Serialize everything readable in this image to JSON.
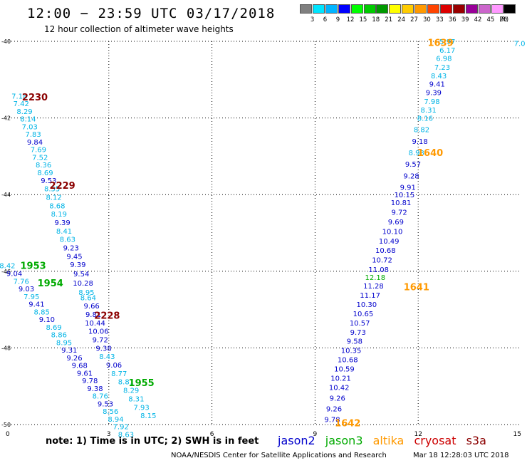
{
  "header": {
    "title": "12:00 − 23:59 UTC 03/17/2018",
    "subtitle": "12 hour collection of altimeter wave heights"
  },
  "colorbar": {
    "labels": [
      "3",
      "6",
      "9",
      "12",
      "15",
      "18",
      "21",
      "24",
      "27",
      "30",
      "33",
      "36",
      "39",
      "42",
      "45",
      "70"
    ],
    "unit": "(ft)",
    "colors": [
      "#808080",
      "#00e5ff",
      "#00b4ff",
      "#0000ff",
      "#00ff00",
      "#00cc00",
      "#009900",
      "#ffff00",
      "#ffcc00",
      "#ff9900",
      "#ff4400",
      "#dd0000",
      "#990000",
      "#990099",
      "#cc66cc",
      "#ff99ff",
      "#000000"
    ]
  },
  "axes": {
    "x_ticks": [
      "0",
      "3",
      "6",
      "9",
      "12",
      "15"
    ],
    "y_ticks": [
      "-40",
      "-42",
      "-44",
      "-46",
      "-48",
      "-50"
    ]
  },
  "satellite_colors": {
    "jason2": "#0000cc",
    "jason3": "#00aa00",
    "altika": "#ff9900",
    "cryosat": "#cc0000",
    "s3a": "#8b0000",
    "light": "#00b4e6"
  },
  "labels": [
    {
      "text": "1639",
      "sat": "altika",
      "lon": 12.65,
      "lat": -40.03
    },
    {
      "text": "1640",
      "sat": "altika",
      "lon": 12.35,
      "lat": -42.9
    },
    {
      "text": "1641",
      "sat": "altika",
      "lon": 11.95,
      "lat": -46.4
    },
    {
      "text": "1642",
      "sat": "altika",
      "lon": 9.95,
      "lat": -49.95
    },
    {
      "text": "2230",
      "sat": "s3a",
      "lon": 0.85,
      "lat": -41.45
    },
    {
      "text": "2229",
      "sat": "s3a",
      "lon": 1.65,
      "lat": -43.75
    },
    {
      "text": "2228",
      "sat": "s3a",
      "lon": 2.95,
      "lat": -47.15
    },
    {
      "text": "1953",
      "sat": "jason3",
      "lon": 0.8,
      "lat": -45.85
    },
    {
      "text": "1954",
      "sat": "jason3",
      "lon": 1.3,
      "lat": -46.3
    },
    {
      "text": "1955",
      "sat": "jason3",
      "lon": 3.95,
      "lat": -48.9
    }
  ],
  "obs": [
    {
      "v": "5.97",
      "lon": 12.85,
      "lat": -40.0,
      "c": "light"
    },
    {
      "v": "6.17",
      "lon": 12.85,
      "lat": -40.22,
      "c": "light"
    },
    {
      "v": "6.98",
      "lon": 12.75,
      "lat": -40.44,
      "c": "light"
    },
    {
      "v": "7.23",
      "lon": 12.7,
      "lat": -40.67,
      "c": "light"
    },
    {
      "v": "8.43",
      "lon": 12.6,
      "lat": -40.89,
      "c": "light"
    },
    {
      "v": "9.41",
      "lon": 12.55,
      "lat": -41.11,
      "c": "jason2"
    },
    {
      "v": "9.39",
      "lon": 12.45,
      "lat": -41.33,
      "c": "jason2"
    },
    {
      "v": "7.98",
      "lon": 12.4,
      "lat": -41.56,
      "c": "light"
    },
    {
      "v": "8.31",
      "lon": 12.3,
      "lat": -41.78,
      "c": "light"
    },
    {
      "v": "8.16",
      "lon": 12.2,
      "lat": -42.0,
      "c": "light"
    },
    {
      "v": "8.82",
      "lon": 12.1,
      "lat": -42.3,
      "c": "light"
    },
    {
      "v": "9.18",
      "lon": 12.05,
      "lat": -42.6,
      "c": "jason2"
    },
    {
      "v": "8.93",
      "lon": 11.95,
      "lat": -42.9,
      "c": "light"
    },
    {
      "v": "9.57",
      "lon": 11.85,
      "lat": -43.2,
      "c": "jason2"
    },
    {
      "v": "9.28",
      "lon": 11.8,
      "lat": -43.5,
      "c": "jason2"
    },
    {
      "v": "9.91",
      "lon": 11.7,
      "lat": -43.8,
      "c": "jason2"
    },
    {
      "v": "10.15",
      "lon": 11.6,
      "lat": -44.0,
      "c": "jason2"
    },
    {
      "v": "10.81",
      "lon": 11.5,
      "lat": -44.2,
      "c": "jason2"
    },
    {
      "v": "9.72",
      "lon": 11.45,
      "lat": -44.45,
      "c": "jason2"
    },
    {
      "v": "9.69",
      "lon": 11.35,
      "lat": -44.7,
      "c": "jason2"
    },
    {
      "v": "10.10",
      "lon": 11.25,
      "lat": -44.95,
      "c": "jason2"
    },
    {
      "v": "10.49",
      "lon": 11.15,
      "lat": -45.2,
      "c": "jason2"
    },
    {
      "v": "10.68",
      "lon": 11.05,
      "lat": -45.45,
      "c": "jason2"
    },
    {
      "v": "10.72",
      "lon": 10.95,
      "lat": -45.7,
      "c": "jason2"
    },
    {
      "v": "11.08",
      "lon": 10.85,
      "lat": -45.95,
      "c": "jason2"
    },
    {
      "v": "12.18",
      "lon": 10.75,
      "lat": -46.15,
      "c": "jason3"
    },
    {
      "v": "11.28",
      "lon": 10.7,
      "lat": -46.38,
      "c": "jason2"
    },
    {
      "v": "11.17",
      "lon": 10.6,
      "lat": -46.62,
      "c": "jason2"
    },
    {
      "v": "10.30",
      "lon": 10.5,
      "lat": -46.86,
      "c": "jason2"
    },
    {
      "v": "10.65",
      "lon": 10.4,
      "lat": -47.1,
      "c": "jason2"
    },
    {
      "v": "10.57",
      "lon": 10.3,
      "lat": -47.34,
      "c": "jason2"
    },
    {
      "v": "9.73",
      "lon": 10.25,
      "lat": -47.58,
      "c": "jason2"
    },
    {
      "v": "9.58",
      "lon": 10.15,
      "lat": -47.82,
      "c": "jason2"
    },
    {
      "v": "10.35",
      "lon": 10.05,
      "lat": -48.06,
      "c": "jason2"
    },
    {
      "v": "10.68",
      "lon": 9.95,
      "lat": -48.3,
      "c": "jason2"
    },
    {
      "v": "10.59",
      "lon": 9.85,
      "lat": -48.54,
      "c": "jason2"
    },
    {
      "v": "10.21",
      "lon": 9.75,
      "lat": -48.78,
      "c": "jason2"
    },
    {
      "v": "10.42",
      "lon": 9.7,
      "lat": -49.02,
      "c": "jason2"
    },
    {
      "v": "9.26",
      "lon": 9.65,
      "lat": -49.3,
      "c": "jason2"
    },
    {
      "v": "9.26",
      "lon": 9.55,
      "lat": -49.58,
      "c": "jason2"
    },
    {
      "v": "9.78",
      "lon": 9.5,
      "lat": -49.86,
      "c": "jason2"
    },
    {
      "v": "7.18",
      "lon": 0.4,
      "lat": -41.42,
      "c": "light"
    },
    {
      "v": "7.42",
      "lon": 0.45,
      "lat": -41.62,
      "c": "light"
    },
    {
      "v": "8.29",
      "lon": 0.55,
      "lat": -41.82,
      "c": "light"
    },
    {
      "v": "8.14",
      "lon": 0.65,
      "lat": -42.02,
      "c": "light"
    },
    {
      "v": "7.03",
      "lon": 0.7,
      "lat": -42.22,
      "c": "light"
    },
    {
      "v": "7.83",
      "lon": 0.8,
      "lat": -42.42,
      "c": "light"
    },
    {
      "v": "9.84",
      "lon": 0.85,
      "lat": -42.62,
      "c": "jason2"
    },
    {
      "v": "7.69",
      "lon": 0.95,
      "lat": -42.82,
      "c": "light"
    },
    {
      "v": "7.52",
      "lon": 1.0,
      "lat": -43.02,
      "c": "light"
    },
    {
      "v": "8.36",
      "lon": 1.1,
      "lat": -43.22,
      "c": "light"
    },
    {
      "v": "8.69",
      "lon": 1.15,
      "lat": -43.42,
      "c": "light"
    },
    {
      "v": "9.53",
      "lon": 1.25,
      "lat": -43.62,
      "c": "jason2"
    },
    {
      "v": "8.55",
      "lon": 1.35,
      "lat": -43.84,
      "c": "light"
    },
    {
      "v": "8.12",
      "lon": 1.4,
      "lat": -44.06,
      "c": "light"
    },
    {
      "v": "8.68",
      "lon": 1.5,
      "lat": -44.28,
      "c": "light"
    },
    {
      "v": "8.19",
      "lon": 1.55,
      "lat": -44.5,
      "c": "light"
    },
    {
      "v": "9.39",
      "lon": 1.65,
      "lat": -44.72,
      "c": "jason2"
    },
    {
      "v": "8.41",
      "lon": 1.7,
      "lat": -44.94,
      "c": "light"
    },
    {
      "v": "8.63",
      "lon": 1.8,
      "lat": -45.16,
      "c": "light"
    },
    {
      "v": "9.23",
      "lon": 1.9,
      "lat": -45.38,
      "c": "jason2"
    },
    {
      "v": "9.45",
      "lon": 2.0,
      "lat": -45.6,
      "c": "jason2"
    },
    {
      "v": "9.39",
      "lon": 2.1,
      "lat": -45.82,
      "c": "jason2"
    },
    {
      "v": "9.54",
      "lon": 2.2,
      "lat": -46.06,
      "c": "jason2"
    },
    {
      "v": "10.28",
      "lon": 2.25,
      "lat": -46.3,
      "c": "jason2"
    },
    {
      "v": "8.95",
      "lon": 2.35,
      "lat": -46.54,
      "c": "light"
    },
    {
      "v": "8.64",
      "lon": 2.4,
      "lat": -46.68,
      "c": "light"
    },
    {
      "v": "9.66",
      "lon": 2.5,
      "lat": -46.9,
      "c": "jason2"
    },
    {
      "v": "9.81",
      "lon": 2.55,
      "lat": -47.12,
      "c": "jason2"
    },
    {
      "v": "10.44",
      "lon": 2.6,
      "lat": -47.34,
      "c": "jason2"
    },
    {
      "v": "10.06",
      "lon": 2.7,
      "lat": -47.56,
      "c": "jason2"
    },
    {
      "v": "9.72",
      "lon": 2.75,
      "lat": -47.78,
      "c": "jason2"
    },
    {
      "v": "9.38",
      "lon": 2.85,
      "lat": -48.0,
      "c": "jason2"
    },
    {
      "v": "8.43",
      "lon": 2.95,
      "lat": -48.22,
      "c": "light"
    },
    {
      "v": "9.06",
      "lon": 3.15,
      "lat": -48.44,
      "c": "jason2"
    },
    {
      "v": "8.77",
      "lon": 3.3,
      "lat": -48.66,
      "c": "light"
    },
    {
      "v": "8.81",
      "lon": 3.5,
      "lat": -48.88,
      "c": "light"
    },
    {
      "v": "8.29",
      "lon": 3.65,
      "lat": -49.1,
      "c": "light"
    },
    {
      "v": "8.31",
      "lon": 3.8,
      "lat": -49.32,
      "c": "light"
    },
    {
      "v": "7.93",
      "lon": 3.95,
      "lat": -49.54,
      "c": "light"
    },
    {
      "v": "8.15",
      "lon": 4.15,
      "lat": -49.76,
      "c": "light"
    },
    {
      "v": "8.42",
      "lon": 0.05,
      "lat": -45.85,
      "c": "light"
    },
    {
      "v": "9.04",
      "lon": 0.25,
      "lat": -46.05,
      "c": "jason2"
    },
    {
      "v": "7.76",
      "lon": 0.45,
      "lat": -46.25,
      "c": "light"
    },
    {
      "v": "9.03",
      "lon": 0.6,
      "lat": -46.45,
      "c": "jason2"
    },
    {
      "v": "7.95",
      "lon": 0.75,
      "lat": -46.65,
      "c": "light"
    },
    {
      "v": "9.41",
      "lon": 0.9,
      "lat": -46.85,
      "c": "jason2"
    },
    {
      "v": "8.85",
      "lon": 1.05,
      "lat": -47.05,
      "c": "light"
    },
    {
      "v": "9.10",
      "lon": 1.2,
      "lat": -47.25,
      "c": "jason2"
    },
    {
      "v": "8.69",
      "lon": 1.4,
      "lat": -47.45,
      "c": "light"
    },
    {
      "v": "8.86",
      "lon": 1.55,
      "lat": -47.65,
      "c": "light"
    },
    {
      "v": "8.95",
      "lon": 1.7,
      "lat": -47.85,
      "c": "light"
    },
    {
      "v": "9.31",
      "lon": 1.85,
      "lat": -48.05,
      "c": "jason2"
    },
    {
      "v": "9.26",
      "lon": 2.0,
      "lat": -48.25,
      "c": "jason2"
    },
    {
      "v": "9.68",
      "lon": 2.15,
      "lat": -48.45,
      "c": "jason2"
    },
    {
      "v": "9.61",
      "lon": 2.3,
      "lat": -48.65,
      "c": "jason2"
    },
    {
      "v": "9.78",
      "lon": 2.45,
      "lat": -48.85,
      "c": "jason2"
    },
    {
      "v": "9.38",
      "lon": 2.6,
      "lat": -49.05,
      "c": "jason2"
    },
    {
      "v": "8.76",
      "lon": 2.75,
      "lat": -49.25,
      "c": "light"
    },
    {
      "v": "9.53",
      "lon": 2.9,
      "lat": -49.45,
      "c": "jason2"
    },
    {
      "v": "8.56",
      "lon": 3.05,
      "lat": -49.65,
      "c": "light"
    },
    {
      "v": "8.94",
      "lon": 3.2,
      "lat": -49.85,
      "c": "light"
    },
    {
      "v": "7.92",
      "lon": 3.35,
      "lat": -50.05,
      "c": "light"
    },
    {
      "v": "8.63",
      "lon": 3.5,
      "lat": -50.25,
      "c": "light"
    },
    {
      "v": "7.0",
      "lon": 14.95,
      "lat": -40.05,
      "c": "light"
    }
  ],
  "footer": {
    "note": "note:  1) Time is in UTC;  2) SWH is in feet",
    "legend": [
      "jason2",
      "jason3",
      "altika",
      "cryosat",
      "s3a"
    ],
    "credit": "NOAA/NESDIS Center for Satellite Applications and Research",
    "timestamp": "Mar 18 12:28:03 UTC 2018"
  }
}
